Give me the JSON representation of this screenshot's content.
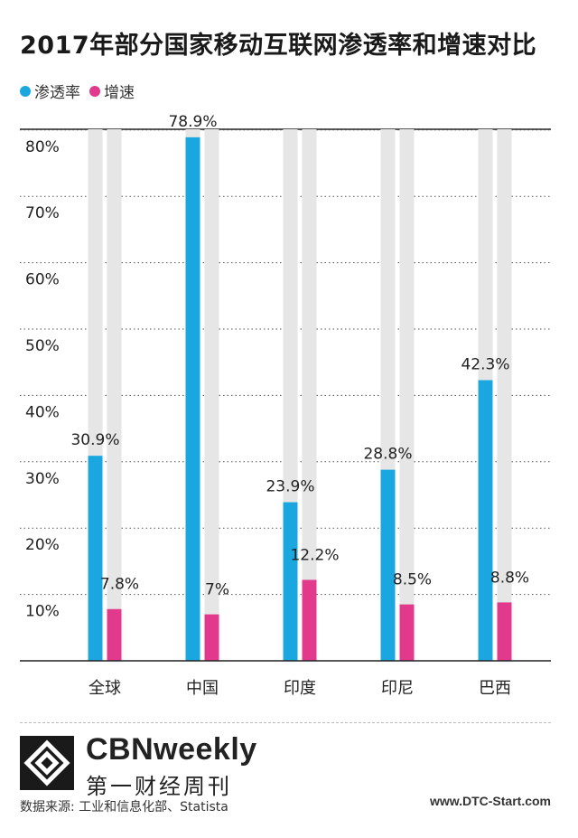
{
  "colors": {
    "penetration": "#1aa7e0",
    "growth": "#e13a8c",
    "track": "#e6e6e6",
    "axis": "#222222",
    "grid": "#555555"
  },
  "legend": {
    "penetration_label": "渗透率",
    "growth_label": "增速"
  },
  "footer": {
    "brand_name": "CBNweekly",
    "brand_sub": "第一财经周刊",
    "source": "数据来源: 工业和信息化部、Statista",
    "site": "www.DTC-Start.com",
    "logo_icon": "cbn-logo-icon"
  },
  "chart_data": {
    "type": "bar",
    "title": "2017年部分国家移动互联网渗透率和增速对比",
    "categories": [
      "全球",
      "中国",
      "印度",
      "印尼",
      "巴西"
    ],
    "series": [
      {
        "name": "渗透率",
        "values": [
          30.9,
          78.9,
          23.9,
          28.8,
          42.3
        ],
        "labels": [
          "30.9%",
          "78.9%",
          "23.9%",
          "28.8%",
          "42.3%"
        ]
      },
      {
        "name": "增速",
        "values": [
          7.8,
          7,
          12.2,
          8.5,
          8.8
        ],
        "labels": [
          "7.8%",
          "7%",
          "12.2%",
          "8.5%",
          "8.8%"
        ]
      }
    ],
    "yticks": [
      10,
      20,
      30,
      40,
      50,
      60,
      70,
      80
    ],
    "ytick_labels": [
      "10%",
      "20%",
      "30%",
      "40%",
      "50%",
      "60%",
      "70%",
      "80%"
    ],
    "ylim": [
      0,
      80
    ],
    "grid": true,
    "legend_position": "top-left"
  }
}
